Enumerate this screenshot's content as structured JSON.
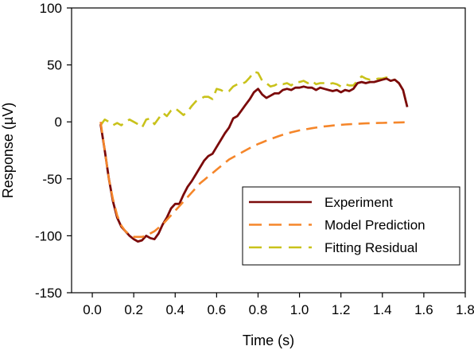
{
  "chart_data": {
    "type": "line",
    "title": "",
    "xlabel": "Time (s)",
    "ylabel": "Response (µV)",
    "xlim": [
      -0.1,
      1.8
    ],
    "ylim": [
      -150,
      100
    ],
    "x_ticks": [
      0.0,
      0.2,
      0.4,
      0.6,
      0.8,
      1.0,
      1.2,
      1.4,
      1.6,
      1.8
    ],
    "x_tick_labels": [
      "0.0",
      "0.2",
      "0.4",
      "0.6",
      "0.8",
      "1.0",
      "1.2",
      "1.4",
      "1.6",
      "1.8"
    ],
    "y_ticks": [
      -150,
      -100,
      -50,
      0,
      50,
      100
    ],
    "y_tick_labels": [
      "-150",
      "-100",
      "-50",
      "0",
      "50",
      "100"
    ],
    "grid": false,
    "legend_position": "bottom-right",
    "series": [
      {
        "name": "Experiment",
        "color": "#7b0a0a",
        "dash": "solid",
        "x": [
          0.04,
          0.06,
          0.08,
          0.1,
          0.12,
          0.14,
          0.16,
          0.18,
          0.2,
          0.22,
          0.24,
          0.26,
          0.28,
          0.3,
          0.32,
          0.34,
          0.36,
          0.38,
          0.4,
          0.42,
          0.44,
          0.46,
          0.48,
          0.5,
          0.52,
          0.54,
          0.56,
          0.58,
          0.6,
          0.62,
          0.64,
          0.66,
          0.68,
          0.7,
          0.72,
          0.74,
          0.76,
          0.78,
          0.8,
          0.82,
          0.84,
          0.86,
          0.88,
          0.9,
          0.92,
          0.94,
          0.96,
          0.98,
          1.0,
          1.02,
          1.04,
          1.06,
          1.08,
          1.1,
          1.12,
          1.14,
          1.16,
          1.18,
          1.2,
          1.22,
          1.24,
          1.26,
          1.28,
          1.3,
          1.32,
          1.34,
          1.36,
          1.38,
          1.4,
          1.42,
          1.44,
          1.46,
          1.48,
          1.5,
          1.52
        ],
        "y": [
          -2,
          -25,
          -50,
          -70,
          -84,
          -92,
          -96,
          -100,
          -103,
          -105,
          -104,
          -100,
          -102,
          -103,
          -98,
          -90,
          -84,
          -76,
          -72,
          -72,
          -64,
          -57,
          -52,
          -46,
          -40,
          -34,
          -30,
          -28,
          -22,
          -16,
          -10,
          -5,
          3,
          5,
          10,
          15,
          20,
          26,
          29,
          24,
          21,
          23,
          25,
          25,
          28,
          29,
          28,
          30,
          30,
          31,
          30,
          30,
          28,
          30,
          29,
          28,
          27,
          28,
          26,
          28,
          27,
          29,
          34,
          35,
          34,
          35,
          35,
          36,
          37,
          38,
          36,
          37,
          34,
          28,
          13
        ]
      },
      {
        "name": "Model Prediction",
        "color": "#f5862a",
        "dash": "dashed",
        "x": [
          0.04,
          0.06,
          0.08,
          0.1,
          0.12,
          0.14,
          0.16,
          0.18,
          0.2,
          0.22,
          0.24,
          0.26,
          0.28,
          0.3,
          0.32,
          0.34,
          0.36,
          0.38,
          0.4,
          0.42,
          0.44,
          0.46,
          0.48,
          0.5,
          0.52,
          0.54,
          0.56,
          0.58,
          0.6,
          0.62,
          0.64,
          0.66,
          0.68,
          0.7,
          0.72,
          0.74,
          0.76,
          0.78,
          0.8,
          0.82,
          0.84,
          0.86,
          0.88,
          0.9,
          0.92,
          0.94,
          0.96,
          0.98,
          1.0,
          1.02,
          1.04,
          1.06,
          1.08,
          1.1,
          1.12,
          1.14,
          1.16,
          1.18,
          1.2,
          1.22,
          1.24,
          1.26,
          1.28,
          1.3,
          1.32,
          1.34,
          1.36,
          1.38,
          1.4,
          1.42,
          1.44,
          1.46,
          1.48,
          1.5,
          1.52
        ],
        "y": [
          0,
          -25,
          -50,
          -68,
          -82,
          -91,
          -96,
          -99,
          -101,
          -101,
          -101,
          -100,
          -98,
          -96,
          -93,
          -90,
          -86,
          -82,
          -78,
          -74,
          -70,
          -66,
          -62,
          -58,
          -54,
          -51,
          -48,
          -45,
          -42,
          -39,
          -36,
          -33,
          -31,
          -29,
          -27,
          -25,
          -23,
          -21,
          -19.5,
          -18,
          -16.5,
          -15,
          -13.8,
          -12.5,
          -11.3,
          -10.2,
          -9.2,
          -8.3,
          -7.5,
          -6.8,
          -6.2,
          -5.6,
          -5.0,
          -4.5,
          -4.0,
          -3.6,
          -3.2,
          -2.9,
          -2.6,
          -2.3,
          -2.1,
          -1.9,
          -1.7,
          -1.5,
          -1.3,
          -1.2,
          -1.1,
          -1.0,
          -0.9,
          -0.8,
          -0.7,
          -0.6,
          -0.5,
          -0.4,
          -0.3
        ]
      },
      {
        "name": "Fitting Residual",
        "color": "#c9c21b",
        "dash": "dashed",
        "x": [
          0.04,
          0.06,
          0.08,
          0.1,
          0.12,
          0.14,
          0.16,
          0.18,
          0.2,
          0.22,
          0.24,
          0.26,
          0.28,
          0.3,
          0.32,
          0.34,
          0.36,
          0.38,
          0.4,
          0.42,
          0.44,
          0.46,
          0.48,
          0.5,
          0.52,
          0.54,
          0.56,
          0.58,
          0.6,
          0.62,
          0.64,
          0.66,
          0.68,
          0.7,
          0.72,
          0.74,
          0.76,
          0.78,
          0.8,
          0.82,
          0.84,
          0.86,
          0.88,
          0.9,
          0.92,
          0.94,
          0.96,
          0.98,
          1.0,
          1.02,
          1.04,
          1.06,
          1.08,
          1.1,
          1.12,
          1.14,
          1.16,
          1.18,
          1.2,
          1.22,
          1.24,
          1.26,
          1.28,
          1.3,
          1.32,
          1.34,
          1.36,
          1.38,
          1.4,
          1.42,
          1.44,
          1.46,
          1.48,
          1.5,
          1.52
        ],
        "y": [
          -3,
          2,
          0,
          -3,
          -1,
          -3,
          0,
          2,
          0,
          -2,
          -5,
          2,
          3,
          -2,
          3,
          8,
          5,
          10,
          12,
          9,
          6,
          9,
          14,
          18,
          20,
          22,
          22,
          20,
          29,
          28,
          26,
          27,
          31,
          33,
          33,
          35,
          39,
          44,
          43,
          36,
          34,
          31,
          32,
          34,
          33,
          34,
          32,
          35,
          35,
          36,
          34,
          36,
          33,
          34,
          34,
          33,
          34,
          33,
          31,
          33,
          32,
          32,
          36,
          40,
          38,
          37,
          37,
          38,
          38,
          39,
          37,
          37,
          34,
          28,
          13
        ]
      }
    ]
  }
}
